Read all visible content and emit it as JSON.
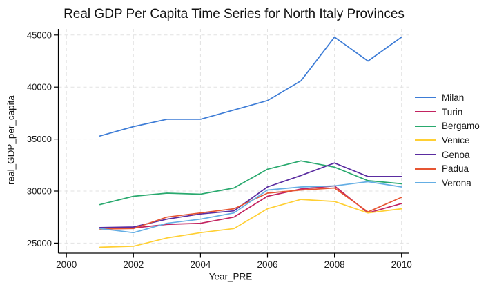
{
  "figure": {
    "background": "#ffffff",
    "axis_color": "#000000",
    "grid_color": "#e2e2e2",
    "text_color": "#191919"
  },
  "chart_data": {
    "type": "line",
    "title": "Real GDP Per Capita Time Series for North Italy Provinces",
    "xlabel": "Year_PRE",
    "ylabel": "real_GDP_per_capita",
    "grid": true,
    "grid_style": "dashed",
    "legend_position": "right-center",
    "x_ticks": [
      2000,
      2002,
      2004,
      2006,
      2008,
      2010
    ],
    "y_ticks": [
      25000,
      30000,
      35000,
      40000,
      45000
    ],
    "x_range": [
      1999.8,
      2010.2
    ],
    "y_range": [
      24300,
      45600
    ],
    "x": [
      2001,
      2002,
      2003,
      2004,
      2005,
      2006,
      2007,
      2008,
      2009,
      2010
    ],
    "series": [
      {
        "name": "Milan",
        "color": "#3d7cd6",
        "values": [
          35300,
          36200,
          36900,
          36900,
          37800,
          38700,
          40600,
          44800,
          42500,
          44800
        ]
      },
      {
        "name": "Turin",
        "color": "#c22360",
        "values": [
          26500,
          26450,
          26800,
          26900,
          27500,
          29500,
          30200,
          30500,
          27900,
          28800
        ]
      },
      {
        "name": "Bergamo",
        "color": "#29a96e",
        "values": [
          28700,
          29500,
          29800,
          29700,
          30300,
          32100,
          32900,
          32300,
          31000,
          30700
        ]
      },
      {
        "name": "Venice",
        "color": "#ffcf33",
        "values": [
          24600,
          24700,
          25500,
          26000,
          26400,
          28300,
          29200,
          29000,
          27900,
          28300
        ]
      },
      {
        "name": "Genoa",
        "color": "#5a2ca0",
        "values": [
          26500,
          26550,
          27300,
          27800,
          28100,
          30400,
          31500,
          32700,
          31400,
          31400
        ]
      },
      {
        "name": "Padua",
        "color": "#e65532",
        "values": [
          26350,
          26400,
          27500,
          27900,
          28300,
          29800,
          30100,
          30300,
          28000,
          29400
        ]
      },
      {
        "name": "Verona",
        "color": "#64aee4",
        "values": [
          26400,
          26000,
          26900,
          27300,
          27900,
          30100,
          30400,
          30500,
          30900,
          30400
        ]
      }
    ]
  }
}
